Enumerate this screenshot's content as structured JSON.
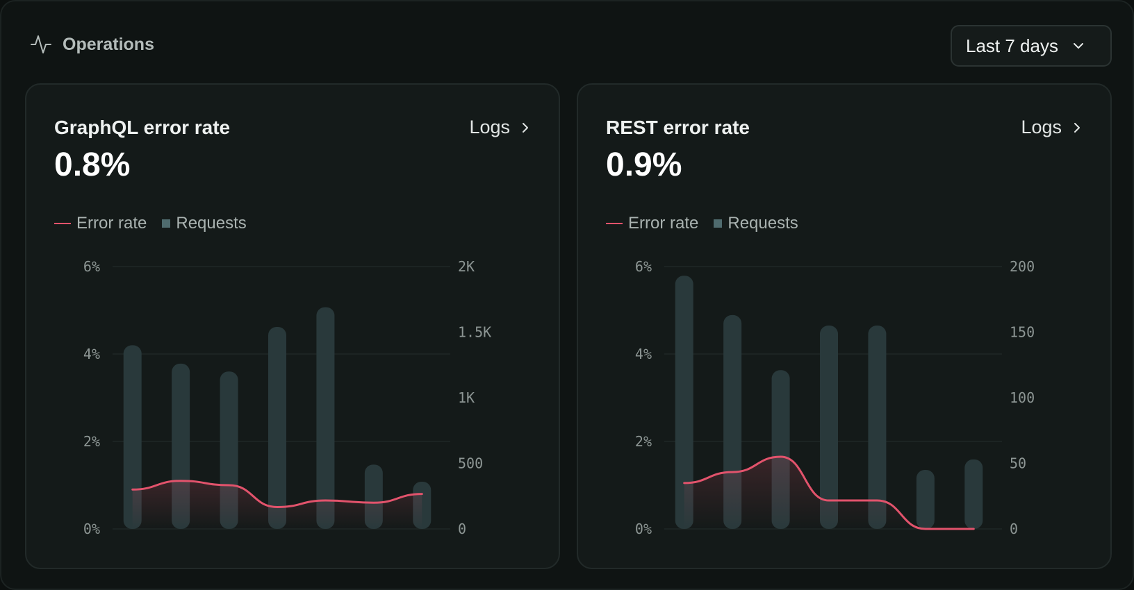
{
  "header": {
    "title": "Operations",
    "icon": "activity-icon"
  },
  "range_select": {
    "label": "Last 7 days",
    "icon": "chevron-down-icon"
  },
  "colors": {
    "error_line": "#e2536c",
    "bar": "#29393b",
    "legend_bar": "#4f6b6e"
  },
  "cards": [
    {
      "title": "GraphQL error rate",
      "value": "0.8%",
      "logs_label": "Logs",
      "legend": {
        "line": "Error rate",
        "bars": "Requests"
      },
      "chart_data": {
        "type": "bar",
        "left_ticks": [
          "6%",
          "4%",
          "2%",
          "0%"
        ],
        "right_ticks": [
          "2K",
          "1.5K",
          "1K",
          "500",
          "0"
        ],
        "left_range": [
          0,
          6
        ],
        "right_range": [
          0,
          2000
        ],
        "series": [
          {
            "name": "Requests",
            "axis": "right",
            "values": [
              1400,
              1260,
              1200,
              1540,
              1690,
              490,
              360
            ]
          },
          {
            "name": "Error rate",
            "axis": "left",
            "values": [
              0.9,
              1.1,
              1.0,
              0.5,
              0.65,
              0.6,
              0.8
            ]
          }
        ]
      }
    },
    {
      "title": "REST error rate",
      "value": "0.9%",
      "logs_label": "Logs",
      "legend": {
        "line": "Error rate",
        "bars": "Requests"
      },
      "chart_data": {
        "type": "bar",
        "left_ticks": [
          "6%",
          "4%",
          "2%",
          "0%"
        ],
        "right_ticks": [
          "200",
          "150",
          "100",
          "50",
          "0"
        ],
        "left_range": [
          0,
          6
        ],
        "right_range": [
          0,
          200
        ],
        "series": [
          {
            "name": "Requests",
            "axis": "right",
            "values": [
              193,
              163,
              121,
              155,
              155,
              45,
              53
            ]
          },
          {
            "name": "Error rate",
            "axis": "left",
            "values": [
              1.05,
              1.3,
              1.65,
              0.65,
              0.65,
              0.0,
              0.0
            ]
          }
        ]
      }
    }
  ]
}
